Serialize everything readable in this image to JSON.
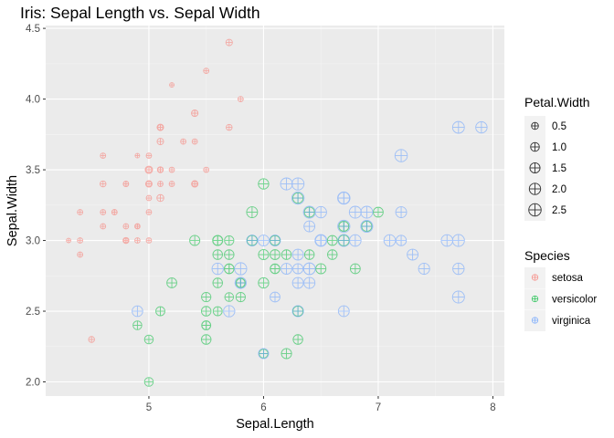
{
  "chart_data": {
    "type": "scatter",
    "title": "Iris: Sepal Length vs. Sepal Width",
    "xlabel": "Sepal.Length",
    "ylabel": "Sepal.Width",
    "xlim": [
      4.1,
      8.1
    ],
    "ylim": [
      1.9,
      4.52
    ],
    "xticks": [
      5,
      6,
      7,
      8
    ],
    "yticks": [
      2.0,
      2.5,
      3.0,
      3.5,
      4.0,
      4.5
    ],
    "xtick_labels": [
      "5",
      "6",
      "7",
      "8"
    ],
    "ytick_labels": [
      "2.0",
      "2.5",
      "3.0",
      "3.5",
      "4.0",
      "4.5"
    ],
    "grid": true,
    "background": "#ebebeb",
    "point_style": "circle with cross",
    "size_legend": {
      "title": "Petal.Width",
      "values": [
        0.5,
        1.0,
        1.5,
        2.0,
        2.5
      ],
      "labels": [
        "0.5",
        "1.0",
        "1.5",
        "2.0",
        "2.5"
      ]
    },
    "color_legend": {
      "title": "Species",
      "position": "right"
    },
    "series": [
      {
        "name": "setosa",
        "color": "#F8766D",
        "points": [
          [
            5.1,
            3.5,
            0.2
          ],
          [
            4.9,
            3.0,
            0.2
          ],
          [
            4.7,
            3.2,
            0.2
          ],
          [
            4.6,
            3.1,
            0.2
          ],
          [
            5.0,
            3.6,
            0.2
          ],
          [
            5.4,
            3.9,
            0.4
          ],
          [
            4.6,
            3.4,
            0.3
          ],
          [
            5.0,
            3.4,
            0.2
          ],
          [
            4.4,
            2.9,
            0.2
          ],
          [
            4.9,
            3.1,
            0.1
          ],
          [
            5.4,
            3.7,
            0.2
          ],
          [
            4.8,
            3.4,
            0.2
          ],
          [
            4.8,
            3.0,
            0.1
          ],
          [
            4.3,
            3.0,
            0.1
          ],
          [
            5.8,
            4.0,
            0.2
          ],
          [
            5.7,
            4.4,
            0.4
          ],
          [
            5.4,
            3.9,
            0.4
          ],
          [
            5.1,
            3.5,
            0.3
          ],
          [
            5.7,
            3.8,
            0.3
          ],
          [
            5.1,
            3.8,
            0.3
          ],
          [
            5.4,
            3.4,
            0.2
          ],
          [
            5.1,
            3.7,
            0.4
          ],
          [
            4.6,
            3.6,
            0.2
          ],
          [
            5.1,
            3.3,
            0.5
          ],
          [
            4.8,
            3.4,
            0.2
          ],
          [
            5.0,
            3.0,
            0.2
          ],
          [
            5.0,
            3.4,
            0.4
          ],
          [
            5.2,
            3.5,
            0.2
          ],
          [
            5.2,
            3.4,
            0.2
          ],
          [
            4.7,
            3.2,
            0.2
          ],
          [
            4.8,
            3.1,
            0.2
          ],
          [
            5.4,
            3.4,
            0.4
          ],
          [
            5.2,
            4.1,
            0.1
          ],
          [
            5.5,
            4.2,
            0.2
          ],
          [
            4.9,
            3.1,
            0.2
          ],
          [
            5.0,
            3.2,
            0.2
          ],
          [
            5.5,
            3.5,
            0.2
          ],
          [
            4.9,
            3.6,
            0.1
          ],
          [
            4.4,
            3.0,
            0.2
          ],
          [
            5.1,
            3.4,
            0.2
          ],
          [
            5.0,
            3.5,
            0.3
          ],
          [
            4.5,
            2.3,
            0.3
          ],
          [
            4.4,
            3.2,
            0.2
          ],
          [
            5.0,
            3.5,
            0.6
          ],
          [
            5.1,
            3.8,
            0.4
          ],
          [
            4.8,
            3.0,
            0.3
          ],
          [
            5.1,
            3.8,
            0.2
          ],
          [
            4.6,
            3.2,
            0.2
          ],
          [
            5.3,
            3.7,
            0.2
          ],
          [
            5.0,
            3.3,
            0.2
          ]
        ]
      },
      {
        "name": "versicolor",
        "color": "#00BA38",
        "points": [
          [
            7.0,
            3.2,
            1.4
          ],
          [
            6.4,
            3.2,
            1.5
          ],
          [
            6.9,
            3.1,
            1.5
          ],
          [
            5.5,
            2.3,
            1.3
          ],
          [
            6.5,
            2.8,
            1.5
          ],
          [
            5.7,
            2.8,
            1.3
          ],
          [
            6.3,
            3.3,
            1.6
          ],
          [
            4.9,
            2.4,
            1.0
          ],
          [
            6.6,
            2.9,
            1.3
          ],
          [
            5.2,
            2.7,
            1.4
          ],
          [
            5.0,
            2.0,
            1.0
          ],
          [
            5.9,
            3.0,
            1.5
          ],
          [
            6.0,
            2.2,
            1.0
          ],
          [
            6.1,
            2.9,
            1.4
          ],
          [
            5.6,
            2.9,
            1.3
          ],
          [
            6.7,
            3.1,
            1.4
          ],
          [
            5.6,
            3.0,
            1.5
          ],
          [
            5.8,
            2.7,
            1.0
          ],
          [
            6.2,
            2.2,
            1.5
          ],
          [
            5.6,
            2.5,
            1.1
          ],
          [
            5.9,
            3.2,
            1.8
          ],
          [
            6.1,
            2.8,
            1.3
          ],
          [
            6.3,
            2.5,
            1.5
          ],
          [
            6.1,
            2.8,
            1.2
          ],
          [
            6.4,
            2.9,
            1.3
          ],
          [
            6.6,
            3.0,
            1.4
          ],
          [
            6.8,
            2.8,
            1.4
          ],
          [
            6.7,
            3.0,
            1.7
          ],
          [
            6.0,
            2.9,
            1.5
          ],
          [
            5.7,
            2.6,
            1.0
          ],
          [
            5.5,
            2.4,
            1.1
          ],
          [
            5.5,
            2.4,
            1.0
          ],
          [
            5.8,
            2.7,
            1.2
          ],
          [
            6.0,
            2.7,
            1.6
          ],
          [
            5.4,
            3.0,
            1.5
          ],
          [
            6.0,
            3.4,
            1.6
          ],
          [
            6.7,
            3.1,
            1.5
          ],
          [
            6.3,
            2.3,
            1.3
          ],
          [
            5.6,
            3.0,
            1.3
          ],
          [
            5.5,
            2.5,
            1.3
          ],
          [
            5.5,
            2.6,
            1.2
          ],
          [
            6.1,
            3.0,
            1.4
          ],
          [
            5.8,
            2.6,
            1.2
          ],
          [
            5.0,
            2.3,
            1.0
          ],
          [
            5.6,
            2.7,
            1.3
          ],
          [
            5.7,
            3.0,
            1.2
          ],
          [
            5.7,
            2.9,
            1.3
          ],
          [
            6.2,
            2.9,
            1.3
          ],
          [
            5.1,
            2.5,
            1.1
          ],
          [
            5.7,
            2.8,
            1.3
          ]
        ]
      },
      {
        "name": "virginica",
        "color": "#619CFF",
        "points": [
          [
            6.3,
            3.3,
            2.5
          ],
          [
            5.8,
            2.7,
            1.9
          ],
          [
            7.1,
            3.0,
            2.1
          ],
          [
            6.3,
            2.9,
            1.8
          ],
          [
            6.5,
            3.0,
            2.2
          ],
          [
            7.6,
            3.0,
            2.1
          ],
          [
            4.9,
            2.5,
            1.7
          ],
          [
            7.3,
            2.9,
            1.8
          ],
          [
            6.7,
            2.5,
            1.8
          ],
          [
            7.2,
            3.6,
            2.5
          ],
          [
            6.5,
            3.2,
            2.0
          ],
          [
            6.4,
            2.7,
            1.9
          ],
          [
            6.8,
            3.0,
            2.1
          ],
          [
            5.7,
            2.5,
            2.0
          ],
          [
            5.8,
            2.8,
            2.4
          ],
          [
            6.4,
            3.2,
            2.3
          ],
          [
            6.5,
            3.0,
            1.8
          ],
          [
            7.7,
            3.8,
            2.2
          ],
          [
            7.7,
            2.6,
            2.3
          ],
          [
            6.0,
            2.2,
            1.5
          ],
          [
            6.9,
            3.2,
            2.3
          ],
          [
            5.6,
            2.8,
            2.0
          ],
          [
            7.7,
            2.8,
            2.0
          ],
          [
            6.3,
            2.7,
            1.8
          ],
          [
            6.7,
            3.3,
            2.1
          ],
          [
            7.2,
            3.2,
            1.8
          ],
          [
            6.2,
            2.8,
            1.8
          ],
          [
            6.1,
            3.0,
            1.8
          ],
          [
            6.4,
            2.8,
            2.1
          ],
          [
            7.2,
            3.0,
            1.6
          ],
          [
            7.4,
            2.8,
            1.9
          ],
          [
            7.9,
            3.8,
            2.0
          ],
          [
            6.4,
            2.8,
            2.2
          ],
          [
            6.3,
            2.8,
            1.5
          ],
          [
            6.1,
            2.6,
            1.4
          ],
          [
            7.7,
            3.0,
            2.3
          ],
          [
            6.3,
            3.4,
            2.4
          ],
          [
            6.4,
            3.1,
            1.8
          ],
          [
            6.0,
            3.0,
            1.8
          ],
          [
            6.9,
            3.1,
            2.1
          ],
          [
            6.7,
            3.1,
            2.4
          ],
          [
            6.9,
            3.1,
            2.3
          ],
          [
            5.8,
            2.7,
            1.9
          ],
          [
            6.8,
            3.2,
            2.3
          ],
          [
            6.7,
            3.3,
            2.5
          ],
          [
            6.7,
            3.0,
            2.3
          ],
          [
            6.3,
            2.5,
            1.9
          ],
          [
            6.5,
            3.0,
            2.0
          ],
          [
            6.2,
            3.4,
            2.3
          ],
          [
            5.9,
            3.0,
            1.8
          ]
        ]
      }
    ]
  }
}
